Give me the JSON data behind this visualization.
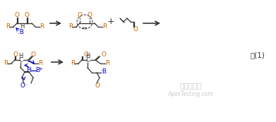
{
  "bg_color": "#ffffff",
  "figsize": [
    3.91,
    1.73
  ],
  "dpi": 100,
  "orange": "#cc6600",
  "blue": "#0000cc",
  "dark": "#333333",
  "label": "式(1)",
  "wm1": "嘉峨检测网",
  "wm2": "ApexTesting.com"
}
